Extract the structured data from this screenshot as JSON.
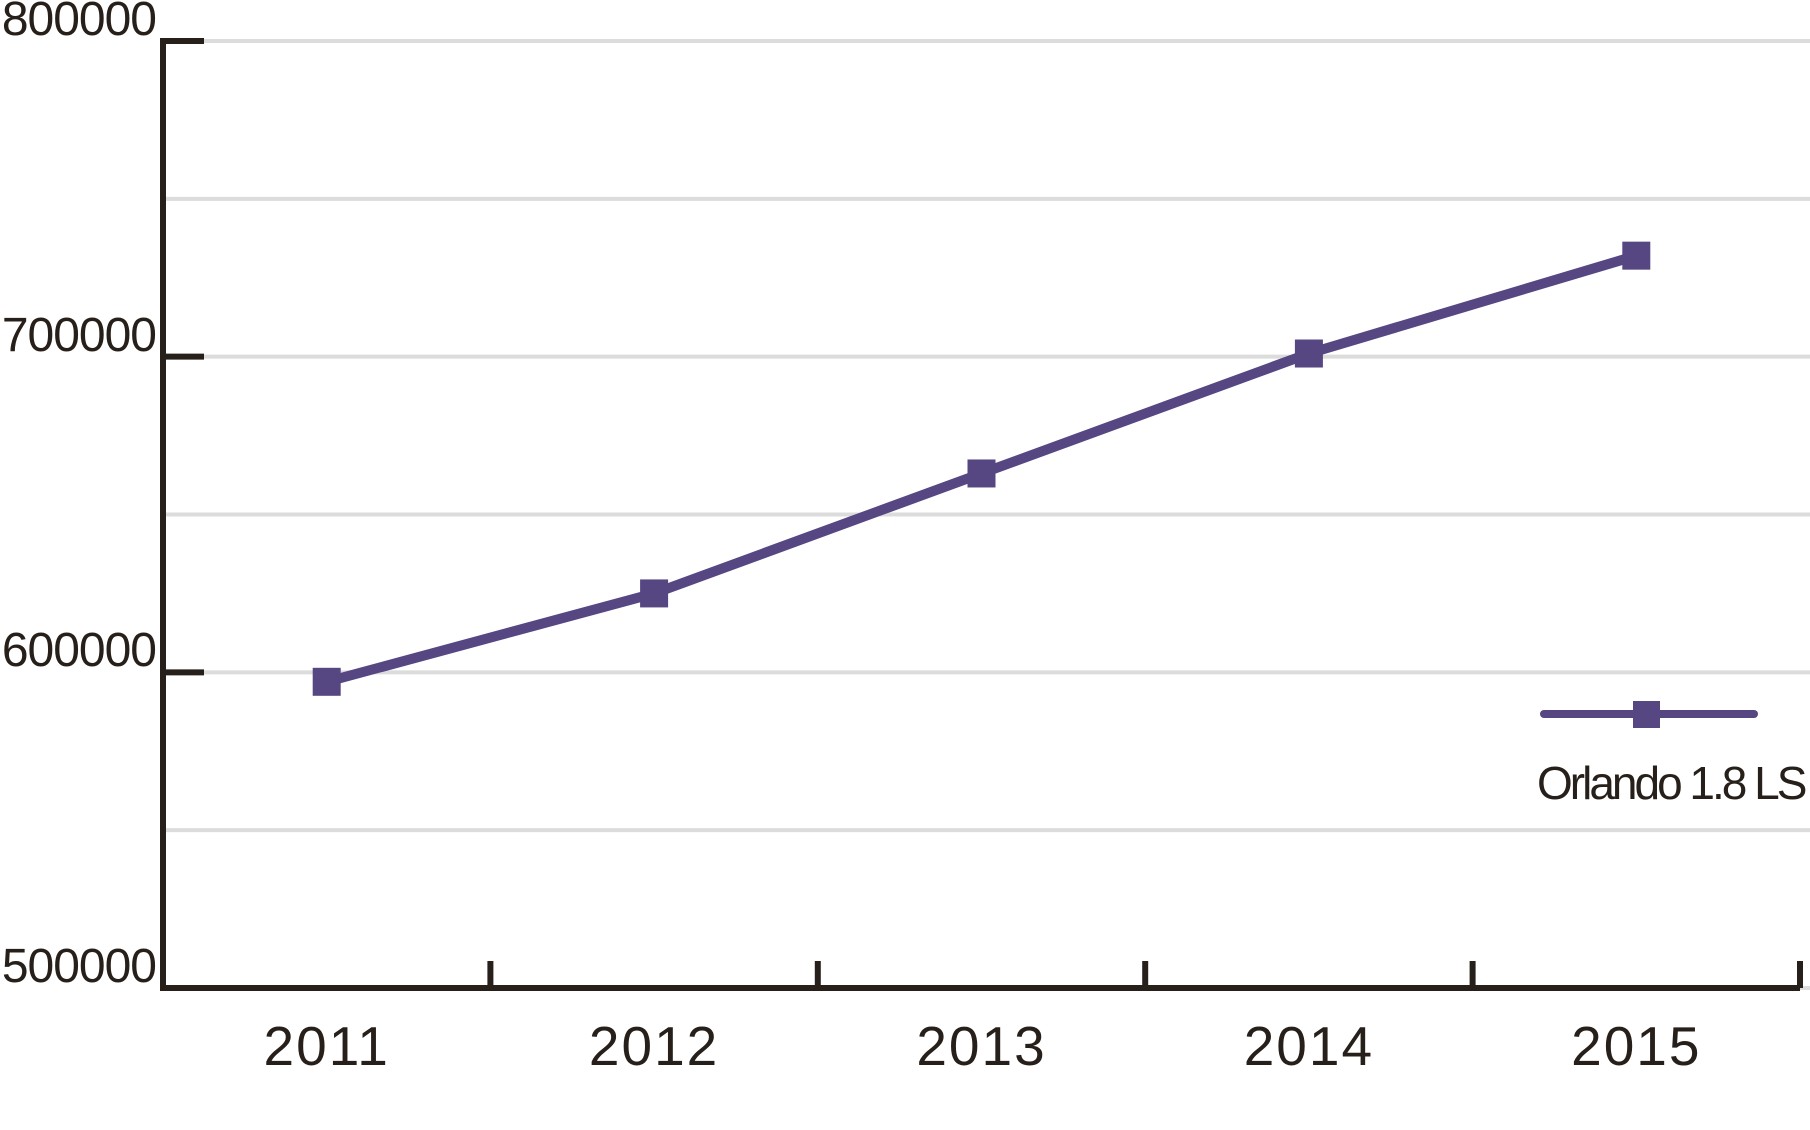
{
  "chart_data": {
    "type": "line",
    "title": "",
    "xlabel": "",
    "ylabel": "",
    "categories": [
      "2011",
      "2012",
      "2013",
      "2014",
      "2015"
    ],
    "series": [
      {
        "name": "Orlando 1.8 LS",
        "values": [
          597000,
          625000,
          663000,
          701000,
          732000
        ]
      }
    ],
    "ylim": [
      500000,
      800000
    ],
    "ytick_labels": [
      "800000",
      "700000",
      "600000",
      "500000"
    ],
    "ytick_values": [
      800000,
      700000,
      600000,
      500000
    ],
    "gridline_step": 50000,
    "grid": true,
    "marker": "square",
    "legend": {
      "label": "Orlando 1.8 LS",
      "position": "bottom-right"
    }
  },
  "colors": {
    "series": "#564682",
    "axis": "#27201a",
    "text": "#27201a",
    "gridline": "#dcdcdc",
    "background": "#ffffff"
  }
}
